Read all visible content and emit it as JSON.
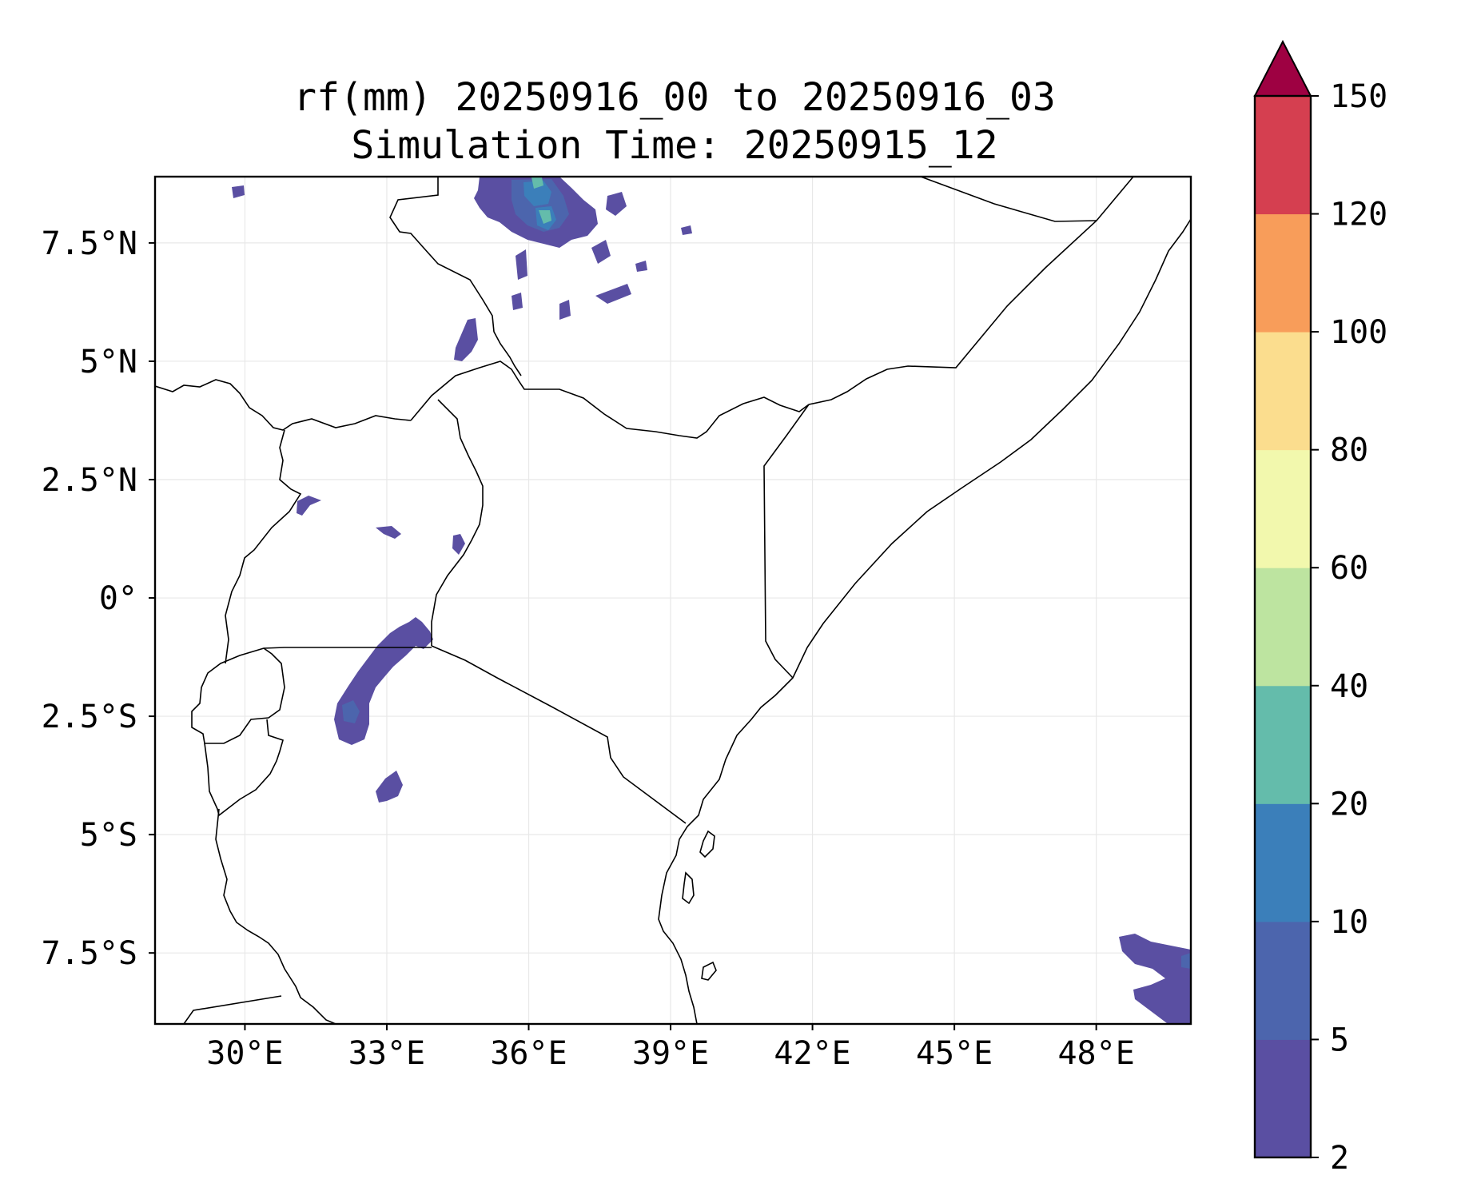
{
  "title": {
    "line1": "rf(mm) 20250916_00 to 20250916_03",
    "line2": "Simulation Time: 20250915_12"
  },
  "map": {
    "lon_range": [
      28.1,
      50.0
    ],
    "lat_range": [
      -9.0,
      8.9
    ],
    "x_ticks": [
      {
        "value": 30,
        "label": "30°E"
      },
      {
        "value": 33,
        "label": "33°E"
      },
      {
        "value": 36,
        "label": "36°E"
      },
      {
        "value": 39,
        "label": "39°E"
      },
      {
        "value": 42,
        "label": "42°E"
      },
      {
        "value": 45,
        "label": "45°E"
      },
      {
        "value": 48,
        "label": "48°E"
      }
    ],
    "y_ticks": [
      {
        "value": 7.5,
        "label": "7.5°N"
      },
      {
        "value": 5,
        "label": "5°N"
      },
      {
        "value": 2.5,
        "label": "2.5°N"
      },
      {
        "value": 0,
        "label": "0°"
      },
      {
        "value": -2.5,
        "label": "2.5°S"
      },
      {
        "value": -5,
        "label": "5°S"
      },
      {
        "value": -7.5,
        "label": "7.5°S"
      }
    ],
    "grid": true,
    "grid_color": "#e8e8e8",
    "border_color": "#000000"
  },
  "colorbar": {
    "levels": [
      2,
      5,
      10,
      20,
      40,
      60,
      80,
      100,
      120,
      150
    ],
    "colors": [
      "#5a4fa2",
      "#4c65ad",
      "#3b7fba",
      "#64bcab",
      "#bde4a0",
      "#f2f8ad",
      "#fbdd8e",
      "#f89d5a",
      "#d53f50"
    ],
    "extend_color": "#9e0142",
    "extend": "max",
    "tick_labels": [
      "2",
      "5",
      "10",
      "20",
      "40",
      "60",
      "80",
      "100",
      "120",
      "150"
    ]
  },
  "chart_data": {
    "type": "heatmap",
    "variable": "rf(mm)",
    "title": "rf(mm) 20250916_00 to 20250916_03",
    "subtitle": "Simulation Time: 20250915_12",
    "xlim": [
      28.1,
      50.0
    ],
    "ylim": [
      -9.0,
      8.9
    ],
    "contour_levels": [
      2,
      5,
      10,
      20,
      40,
      60,
      80,
      100,
      120,
      150
    ],
    "rain_areas": [
      {
        "lon": 35.8,
        "lat": 8.4,
        "max_mm": 40
      },
      {
        "lon": 36.3,
        "lat": 8.0,
        "max_mm": 30
      },
      {
        "lon": 35.0,
        "lat": 8.2,
        "max_mm": 10
      },
      {
        "lon": 38.0,
        "lat": 8.0,
        "max_mm": 10
      },
      {
        "lon": 34.8,
        "lat": 5.5,
        "max_mm": 5
      },
      {
        "lon": 35.5,
        "lat": 6.0,
        "max_mm": 5
      },
      {
        "lon": 38.0,
        "lat": 6.5,
        "max_mm": 5
      },
      {
        "lon": 31.3,
        "lat": 2.0,
        "max_mm": 5
      },
      {
        "lon": 33.0,
        "lat": 1.5,
        "max_mm": 5
      },
      {
        "lon": 34.5,
        "lat": 1.2,
        "max_mm": 5
      },
      {
        "lon": 33.3,
        "lat": -1.0,
        "max_mm": 5
      },
      {
        "lon": 32.2,
        "lat": -2.6,
        "max_mm": 5
      },
      {
        "lon": 33.0,
        "lat": -4.0,
        "max_mm": 5
      },
      {
        "lon": 49.3,
        "lat": -8.4,
        "max_mm": 5
      },
      {
        "lon": 48.5,
        "lat": -7.8,
        "max_mm": 5
      }
    ]
  }
}
